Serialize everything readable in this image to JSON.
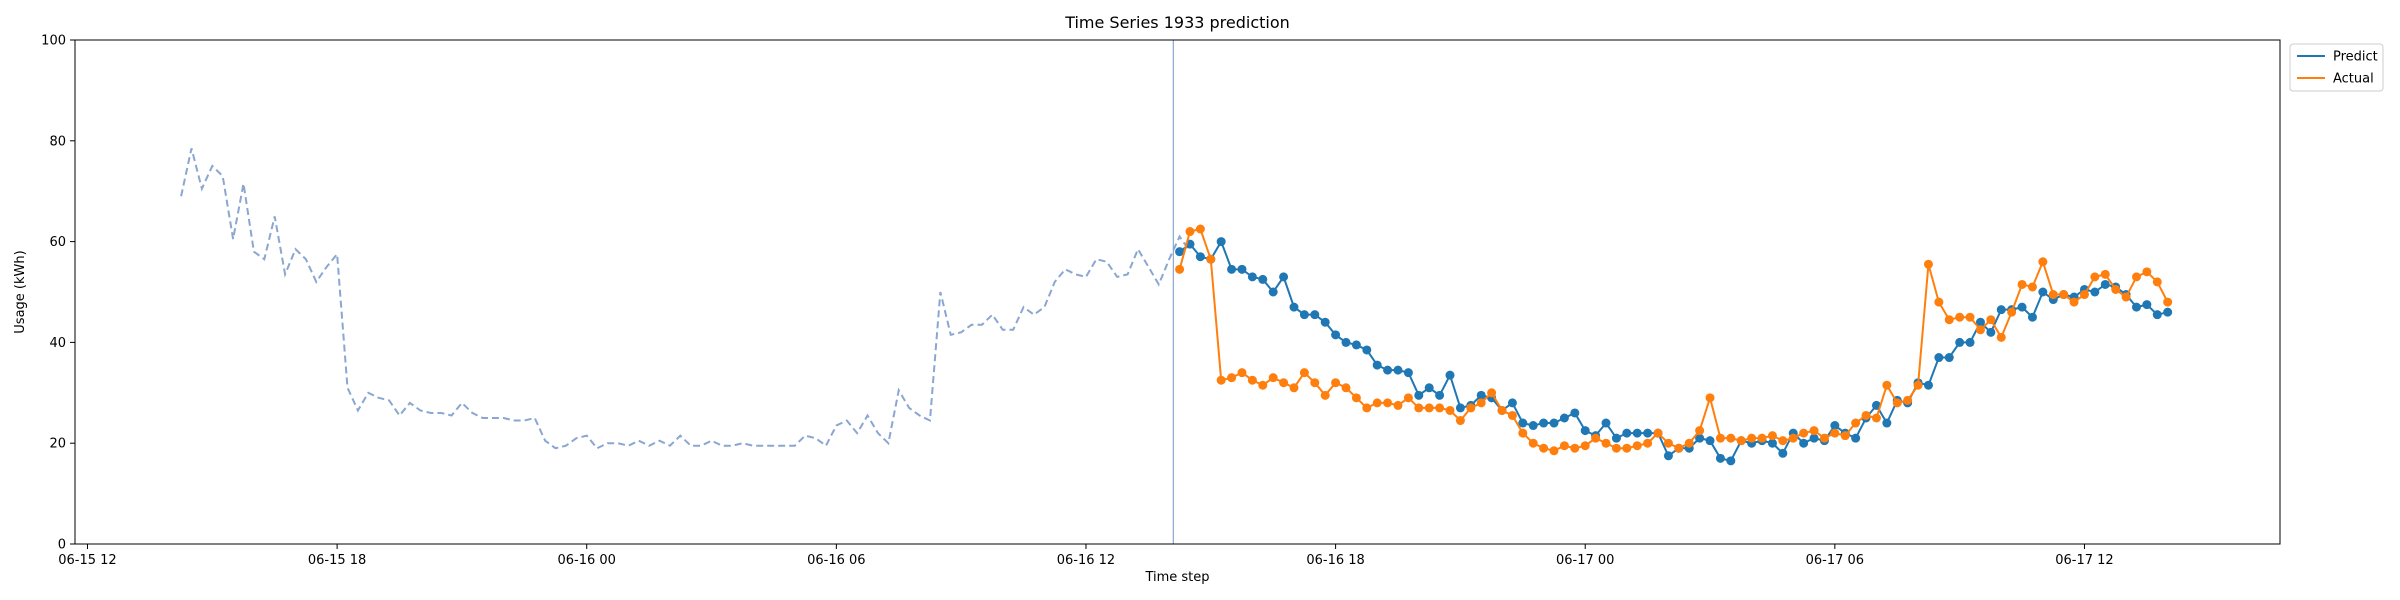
{
  "chart_data": {
    "type": "line",
    "title": "Time Series 1933 prediction",
    "xlabel": "Time step",
    "ylabel": "Usage (kWh)",
    "ylim": [
      0,
      100
    ],
    "xlim_hours": [
      -0.3,
      52.7
    ],
    "start": "06-15 14:00",
    "step_minutes": 15,
    "x_ticks": [
      {
        "label": "06-15 12",
        "h": 0
      },
      {
        "label": "06-15 18",
        "h": 6
      },
      {
        "label": "06-16 00",
        "h": 12
      },
      {
        "label": "06-16 06",
        "h": 18
      },
      {
        "label": "06-16 12",
        "h": 24
      },
      {
        "label": "06-16 18",
        "h": 30
      },
      {
        "label": "06-17 00",
        "h": 36
      },
      {
        "label": "06-17 06",
        "h": 42
      },
      {
        "label": "06-17 12",
        "h": 48
      }
    ],
    "y_ticks": [
      0,
      20,
      40,
      60,
      80,
      100
    ],
    "split_hour": 26.1,
    "legend_position": "upper-right-outside",
    "colors": {
      "history": "#8aa6d1",
      "predict": "#1f77b4",
      "actual": "#ff7f0e",
      "split": "#8aa6d1"
    },
    "history": {
      "start_hour": 2.25,
      "values": [
        69,
        78.5,
        70.5,
        75,
        73,
        60.5,
        71.5,
        58,
        56.5,
        65,
        53.5,
        58.5,
        56.5,
        52,
        55,
        57.5,
        31,
        26.5,
        30,
        29,
        28.5,
        25.5,
        28,
        26.5,
        26,
        26,
        25.5,
        28,
        26,
        25,
        25,
        25,
        24.5,
        24.5,
        25,
        20.5,
        19,
        19.5,
        21,
        21.5,
        19,
        20,
        20,
        19.5,
        20.5,
        19.5,
        20.5,
        19.5,
        21.5,
        19.5,
        19.5,
        20.5,
        19.5,
        19.5,
        20,
        19.5,
        19.5,
        19.5,
        19.5,
        19.5,
        21.5,
        21,
        19.5,
        23.5,
        24.5,
        22,
        25.5,
        22,
        20,
        30.5,
        27,
        25.5,
        24.5,
        50,
        41.5,
        42,
        43.5,
        43.5,
        45.5,
        42.5,
        42.5,
        47,
        45.5,
        47,
        52,
        54.5,
        53.5,
        53,
        56.5,
        56,
        53,
        53.5,
        58.5,
        55,
        51.5,
        56.5,
        61,
        58
      ]
    },
    "series": [
      {
        "name": "Predict",
        "start_hour": 26.25,
        "values": [
          58,
          59.5,
          57,
          56.5,
          60,
          54.5,
          54.5,
          53,
          52.5,
          50,
          53,
          47,
          45.5,
          45.5,
          44,
          41.5,
          40,
          39.5,
          38.5,
          35.5,
          34.5,
          34.5,
          34,
          29.5,
          31,
          29.5,
          33.5,
          27,
          27.5,
          29.5,
          29,
          26.5,
          28,
          24,
          23.5,
          24,
          24,
          25,
          26,
          22.5,
          21.5,
          24,
          21,
          22,
          22,
          22,
          22,
          17.5,
          19,
          19,
          21,
          20.5,
          17,
          16.5,
          20.5,
          20,
          20.5,
          20,
          18,
          22,
          20,
          21,
          20.5,
          23.5,
          22,
          21,
          25,
          27.5,
          24,
          28.5,
          28,
          32,
          31.5,
          37,
          37,
          40,
          40,
          44,
          42,
          46.5,
          46.5,
          47,
          45,
          50,
          48.5,
          49.5,
          49,
          50.5,
          50,
          51.5,
          51,
          49.5,
          47,
          47.5,
          45.5,
          46
        ]
      },
      {
        "name": "Actual",
        "start_hour": 26.25,
        "values": [
          54.5,
          62,
          62.5,
          56.5,
          32.5,
          33,
          34,
          32.5,
          31.5,
          33,
          32,
          31,
          34,
          32,
          29.5,
          32,
          31,
          29,
          27,
          28,
          28,
          27.5,
          29,
          27,
          27,
          27,
          26.5,
          24.5,
          27,
          28,
          30,
          26.5,
          25.5,
          22,
          20,
          19,
          18.5,
          19.5,
          19,
          19.5,
          21,
          20,
          19,
          19,
          19.5,
          20,
          22,
          20,
          19,
          20,
          22.5,
          29,
          21,
          21,
          20.5,
          21,
          21,
          21.5,
          20.5,
          21,
          22,
          22.5,
          21,
          22,
          21.5,
          24,
          25.5,
          25,
          31.5,
          28,
          28.5,
          31.5,
          55.5,
          48,
          44.5,
          45,
          45,
          42.5,
          44.5,
          41,
          46,
          51.5,
          51,
          56,
          49.5,
          49.5,
          48,
          49.5,
          53,
          53.5,
          50.5,
          49,
          53,
          54,
          52,
          48
        ]
      }
    ]
  }
}
